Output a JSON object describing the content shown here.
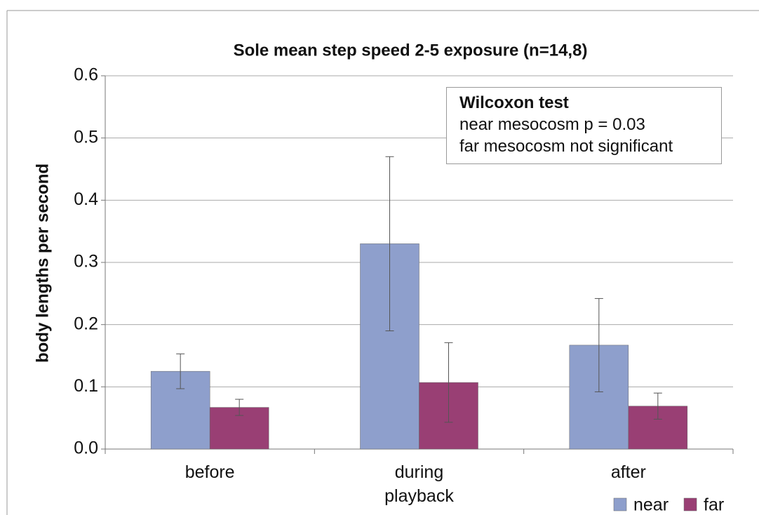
{
  "chart_data": {
    "type": "bar",
    "title": "Sole mean step speed 2-5 exposure (n=14,8)",
    "y_label": "body lengths per second",
    "categories": [
      "before",
      "during playback",
      "after"
    ],
    "series": [
      {
        "name": "near",
        "color": "#8e9fcc",
        "values": [
          0.125,
          0.33,
          0.167
        ],
        "errors": [
          0.028,
          0.14,
          0.075
        ]
      },
      {
        "name": "far",
        "color": "#993f74",
        "values": [
          0.067,
          0.107,
          0.069
        ],
        "errors": [
          0.013,
          0.064,
          0.021
        ]
      }
    ],
    "ylim": [
      0,
      0.6
    ],
    "yticks": [
      {
        "value": 0,
        "label": "0.0"
      },
      0.1,
      0.2,
      0.3,
      0.4,
      0.5,
      0.6
    ],
    "grid": true,
    "legend": "bottom-right",
    "annotation": {
      "title": "Wilcoxon test",
      "lines": [
        "near mesocosm p = 0.03",
        "far mesocosm not significant"
      ]
    }
  }
}
